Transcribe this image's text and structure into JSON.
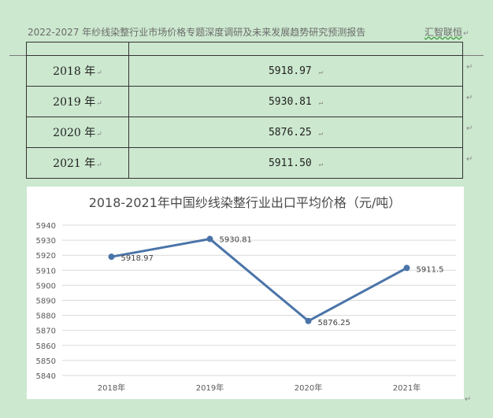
{
  "header": {
    "title": "2022-2027 年纱线染整行业市场价格专题深度调研及未来发展趋势研究预测报告",
    "org": "汇智联恒",
    "mark": "↵"
  },
  "table": {
    "rows": [
      {
        "year": "2018 年",
        "value": "5918.97"
      },
      {
        "year": "2019 年",
        "value": "5930.81"
      },
      {
        "year": "2020 年",
        "value": "5876.25"
      },
      {
        "year": "2021 年",
        "value": "5911.50"
      }
    ],
    "mark": "↵"
  },
  "chart_data": {
    "type": "line",
    "title": "2018-2021年中国纱线染整行业出口平均价格（元/吨）",
    "categories": [
      "2018年",
      "2019年",
      "2020年",
      "2021年"
    ],
    "series": [
      {
        "values": [
          5918.97,
          5930.81,
          5876.25,
          5911.5
        ]
      }
    ],
    "data_labels": [
      "5918.97",
      "5930.81",
      "5876.25",
      "5911.5"
    ],
    "ylim": [
      5840,
      5940
    ],
    "yticks": [
      5840,
      5850,
      5860,
      5870,
      5880,
      5890,
      5900,
      5910,
      5920,
      5930,
      5940
    ],
    "grid": true,
    "legend": "none",
    "line_color": "#4a74a8"
  }
}
